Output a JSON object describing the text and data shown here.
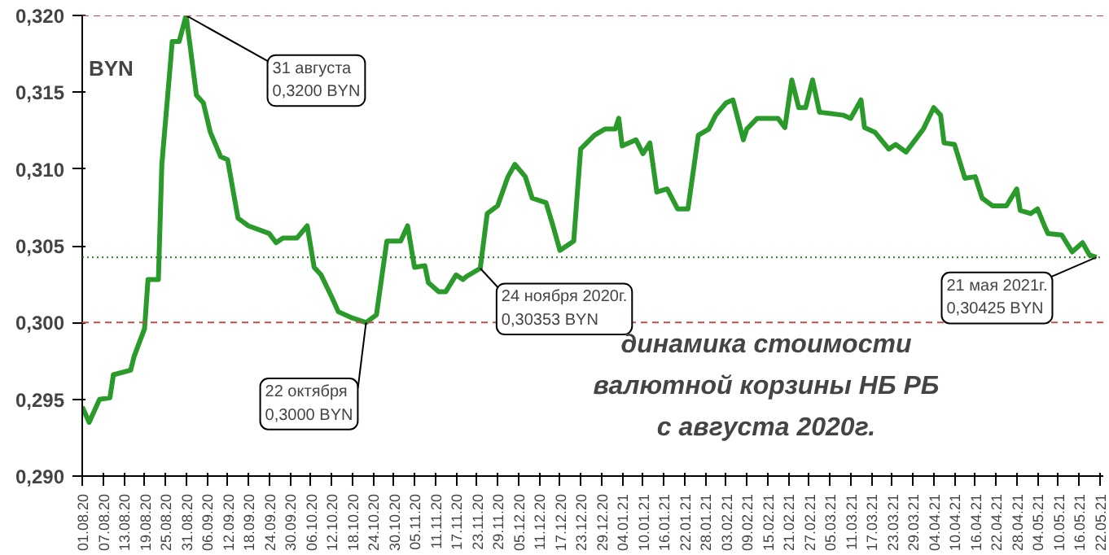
{
  "chart_data": {
    "type": "line",
    "ylabel": "BYN",
    "annotations": [
      {
        "text": "31 августа\n0,3200 BYN",
        "x": "2020-08-31",
        "y": 0.32
      },
      {
        "text": "22 октября\n0,3000 BYN",
        "x": "2020-10-22",
        "y": 0.3
      },
      {
        "text": "24 ноября 2020г.\n0,30353 BYN",
        "x": "2020-11-24",
        "y": 0.30353
      },
      {
        "text": "21 мая 2021г.\n0,30425 BYN",
        "x": "2021-05-21",
        "y": 0.30425
      },
      "динамика стоимости\nвалютной корзины НБ РБ\nс августа 2020г."
    ],
    "x": [
      "2020-08-01",
      "2020-08-03",
      "2020-08-06",
      "2020-08-09",
      "2020-08-10",
      "2020-08-15",
      "2020-08-16",
      "2020-08-19",
      "2020-08-20",
      "2020-08-23",
      "2020-08-24",
      "2020-08-26",
      "2020-08-27",
      "2020-08-29",
      "2020-08-31",
      "2020-09-01",
      "2020-09-03",
      "2020-09-05",
      "2020-09-07",
      "2020-09-10",
      "2020-09-12",
      "2020-09-15",
      "2020-09-18",
      "2020-09-24",
      "2020-09-26",
      "2020-09-28",
      "2020-10-02",
      "2020-10-05",
      "2020-10-07",
      "2020-10-09",
      "2020-10-12",
      "2020-10-14",
      "2020-10-18",
      "2020-10-22",
      "2020-10-25",
      "2020-10-28",
      "2020-11-01",
      "2020-11-03",
      "2020-11-05",
      "2020-11-08",
      "2020-11-09",
      "2020-11-12",
      "2020-11-14",
      "2020-11-17",
      "2020-11-19",
      "2020-11-20",
      "2020-11-24",
      "2020-11-26",
      "2020-11-29",
      "2020-12-02",
      "2020-12-04",
      "2020-12-07",
      "2020-12-09",
      "2020-12-13",
      "2020-12-15",
      "2020-12-17",
      "2020-12-21",
      "2020-12-23",
      "2020-12-27",
      "2020-12-30",
      "2021-01-02",
      "2021-01-03",
      "2021-01-04",
      "2021-01-08",
      "2021-01-10",
      "2021-01-12",
      "2021-01-14",
      "2021-01-17",
      "2021-01-20",
      "2021-01-23",
      "2021-01-26",
      "2021-01-29",
      "2021-01-31",
      "2021-02-03",
      "2021-02-05",
      "2021-02-08",
      "2021-02-09",
      "2021-02-12",
      "2021-02-18",
      "2021-02-20",
      "2021-02-22",
      "2021-02-24",
      "2021-02-26",
      "2021-02-28",
      "2021-03-02",
      "2021-03-09",
      "2021-03-11",
      "2021-03-14",
      "2021-03-15",
      "2021-03-18",
      "2021-03-22",
      "2021-03-24",
      "2021-03-27",
      "2021-03-29",
      "2021-04-01",
      "2021-04-04",
      "2021-04-06",
      "2021-04-07",
      "2021-04-10",
      "2021-04-13",
      "2021-04-16",
      "2021-04-18",
      "2021-04-21",
      "2021-04-25",
      "2021-04-28",
      "2021-04-29",
      "2021-05-02",
      "2021-05-04",
      "2021-05-06",
      "2021-05-07",
      "2021-05-11",
      "2021-05-14",
      "2021-05-17",
      "2021-05-19",
      "2021-05-21"
    ],
    "series": [
      {
        "color": "#2a9a2a",
        "values": [
          0.2945,
          0.2935,
          0.295,
          0.2951,
          0.2966,
          0.2969,
          0.2978,
          0.2996,
          0.3028,
          0.3028,
          0.3103,
          0.3156,
          0.3183,
          0.3183,
          0.32,
          0.3183,
          0.3148,
          0.3143,
          0.3124,
          0.3108,
          0.3106,
          0.3068,
          0.3063,
          0.3058,
          0.3052,
          0.3055,
          0.3055,
          0.3063,
          0.3036,
          0.3031,
          0.3017,
          0.3007,
          0.3003,
          0.3,
          0.3005,
          0.3053,
          0.3053,
          0.3063,
          0.3036,
          0.3037,
          0.3026,
          0.302,
          0.302,
          0.3031,
          0.3028,
          0.303,
          0.30353,
          0.3071,
          0.3076,
          0.3095,
          0.3103,
          0.3095,
          0.3081,
          0.3078,
          0.3063,
          0.3047,
          0.3053,
          0.3113,
          0.3122,
          0.3126,
          0.3126,
          0.3133,
          0.3115,
          0.3119,
          0.311,
          0.3117,
          0.3085,
          0.3087,
          0.3074,
          0.3074,
          0.3122,
          0.3126,
          0.3135,
          0.3143,
          0.3145,
          0.3119,
          0.3126,
          0.3133,
          0.3133,
          0.3127,
          0.3158,
          0.314,
          0.314,
          0.3158,
          0.3137,
          0.3135,
          0.3133,
          0.3145,
          0.3127,
          0.3124,
          0.3113,
          0.3116,
          0.3111,
          0.3117,
          0.3126,
          0.314,
          0.3135,
          0.3117,
          0.3116,
          0.3094,
          0.3095,
          0.3081,
          0.3076,
          0.3076,
          0.3087,
          0.3073,
          0.3071,
          0.3074,
          0.3063,
          0.3058,
          0.3057,
          0.3046,
          0.3052,
          0.3044,
          0.30425
        ]
      }
    ],
    "xlim": [
      "2020-08-01",
      "2021-05-23"
    ],
    "xticks": [
      {
        "value": "2020-08-01",
        "label": "01.08.20"
      },
      {
        "value": "2020-08-07",
        "label": "07.08.20"
      },
      {
        "value": "2020-08-13",
        "label": "13.08.20"
      },
      {
        "value": "2020-08-19",
        "label": "19.08.20"
      },
      {
        "value": "2020-08-25",
        "label": "25.08.20"
      },
      {
        "value": "2020-08-31",
        "label": "31.08.20"
      },
      {
        "value": "2020-09-06",
        "label": "06.09.20"
      },
      {
        "value": "2020-09-12",
        "label": "12.09.20"
      },
      {
        "value": "2020-09-18",
        "label": "18.09.20"
      },
      {
        "value": "2020-09-24",
        "label": "24.09.20"
      },
      {
        "value": "2020-09-30",
        "label": "30.09.20"
      },
      {
        "value": "2020-10-06",
        "label": "06.10.20"
      },
      {
        "value": "2020-10-12",
        "label": "12.10.20"
      },
      {
        "value": "2020-10-18",
        "label": "18.10.20"
      },
      {
        "value": "2020-10-24",
        "label": "24.10.20"
      },
      {
        "value": "2020-10-30",
        "label": "30.10.20"
      },
      {
        "value": "2020-11-05",
        "label": "05.11.20"
      },
      {
        "value": "2020-11-11",
        "label": "11.11.20"
      },
      {
        "value": "2020-11-17",
        "label": "17.11.20"
      },
      {
        "value": "2020-11-23",
        "label": "23.11.20"
      },
      {
        "value": "2020-11-29",
        "label": "29.11.20"
      },
      {
        "value": "2020-12-05",
        "label": "05.12.20"
      },
      {
        "value": "2020-12-11",
        "label": "11.12.20"
      },
      {
        "value": "2020-12-17",
        "label": "17.12.20"
      },
      {
        "value": "2020-12-23",
        "label": "23.12.20"
      },
      {
        "value": "2020-12-29",
        "label": "29.12.20"
      },
      {
        "value": "2021-01-04",
        "label": "04.01.21"
      },
      {
        "value": "2021-01-10",
        "label": "10.01.21"
      },
      {
        "value": "2021-01-16",
        "label": "16.01.21"
      },
      {
        "value": "2021-01-22",
        "label": "22.01.21"
      },
      {
        "value": "2021-01-28",
        "label": "28.01.21"
      },
      {
        "value": "2021-02-03",
        "label": "03.02.21"
      },
      {
        "value": "2021-02-09",
        "label": "09.02.21"
      },
      {
        "value": "2021-02-15",
        "label": "15.02.21"
      },
      {
        "value": "2021-02-21",
        "label": "21.02.21"
      },
      {
        "value": "2021-02-27",
        "label": "27.02.21"
      },
      {
        "value": "2021-03-05",
        "label": "05.03.21"
      },
      {
        "value": "2021-03-11",
        "label": "11.03.21"
      },
      {
        "value": "2021-03-17",
        "label": "17.03.21"
      },
      {
        "value": "2021-03-23",
        "label": "23.03.21"
      },
      {
        "value": "2021-03-29",
        "label": "29.03.21"
      },
      {
        "value": "2021-04-04",
        "label": "04.04.21"
      },
      {
        "value": "2021-04-10",
        "label": "10.04.21"
      },
      {
        "value": "2021-04-16",
        "label": "16.04.21"
      },
      {
        "value": "2021-04-22",
        "label": "22.04.21"
      },
      {
        "value": "2021-04-28",
        "label": "28.04.21"
      },
      {
        "value": "2021-05-04",
        "label": "04.05.21"
      },
      {
        "value": "2021-05-10",
        "label": "10.05.21"
      },
      {
        "value": "2021-05-16",
        "label": "16.05.21"
      },
      {
        "value": "2021-05-22",
        "label": "22.05.21"
      }
    ],
    "ylim": [
      0.29,
      0.32
    ],
    "yticks": [
      {
        "value": 0.29,
        "label": "0,290"
      },
      {
        "value": 0.295,
        "label": "0,295"
      },
      {
        "value": 0.3,
        "label": "0,300"
      },
      {
        "value": 0.305,
        "label": "0,305"
      },
      {
        "value": 0.31,
        "label": "0,310"
      },
      {
        "value": 0.315,
        "label": "0,315"
      },
      {
        "value": 0.32,
        "label": "0,320"
      }
    ],
    "ref_lines": [
      {
        "axis": "y",
        "value": 0.32,
        "color": "#c0504d",
        "line_style": "dashed"
      },
      {
        "axis": "y",
        "value": 0.3,
        "color": "#c0504d",
        "line_style": "dashed"
      },
      {
        "axis": "y",
        "value": 0.30425,
        "color": "#2a7a2a",
        "line_style": "dotted"
      }
    ],
    "grid": false,
    "marker": "none",
    "line_style": "solid"
  }
}
